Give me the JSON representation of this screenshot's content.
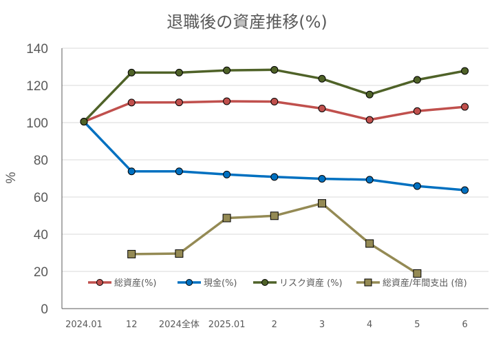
{
  "chart_data": {
    "type": "line",
    "title": "退職後の資産推移(%)",
    "xlabel": "",
    "ylabel": "%",
    "categories": [
      "2024.01",
      "12",
      "2024全体",
      "2025.01",
      "2",
      "3",
      "4",
      "5",
      "6"
    ],
    "ylim": [
      0,
      140
    ],
    "yticks": [
      0,
      20,
      40,
      60,
      80,
      100,
      120,
      140
    ],
    "grid": true,
    "legend_position": "bottom-inside",
    "series": [
      {
        "name": "総資産(%)",
        "color": "#C0504D",
        "marker": "circle",
        "values": [
          100.5,
          110.8,
          110.9,
          111.5,
          111.3,
          107.6,
          101.5,
          106.2,
          108.5
        ]
      },
      {
        "name": "現金(%)",
        "color": "#0070C0",
        "marker": "circle",
        "values": [
          100.5,
          73.8,
          73.8,
          72.1,
          70.8,
          69.8,
          69.3,
          65.9,
          63.7
        ]
      },
      {
        "name": "リスク資産 (%)",
        "color": "#4F6228",
        "marker": "circle",
        "values": [
          100.5,
          126.9,
          126.9,
          128.1,
          128.4,
          123.6,
          115.1,
          123.0,
          127.8
        ]
      },
      {
        "name": "総資産/年間支出 (倍)",
        "color": "#948A54",
        "marker": "square",
        "values": [
          null,
          29.3,
          29.6,
          48.7,
          49.9,
          56.6,
          35.0,
          18.9,
          null
        ]
      }
    ]
  }
}
